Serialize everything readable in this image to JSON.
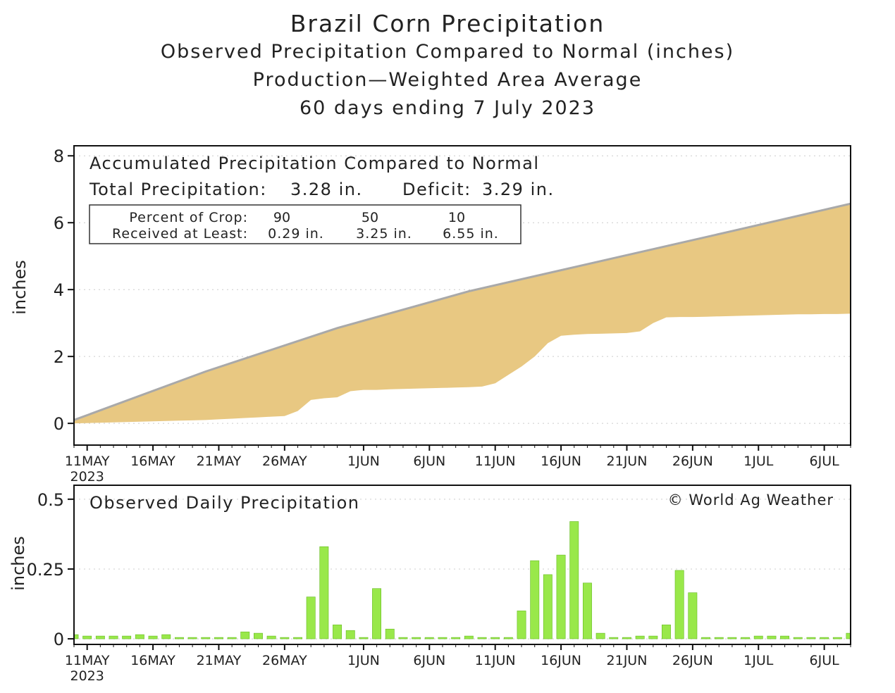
{
  "header": {
    "title": "Brazil Corn Precipitation",
    "subtitle1": "Observed Precipitation Compared to Normal (inches)",
    "subtitle2": "Production—Weighted Area Average",
    "subtitle3": "60 days ending 7 July 2023"
  },
  "colors": {
    "deficit_fill": "#e8c882",
    "normal_line": "#a9a9a9",
    "bar_fill": "#99e84a",
    "bar_stroke": "#66bb22"
  },
  "chart_data": [
    {
      "type": "area",
      "title": "Accumulated Precipitation Compared to Normal",
      "summary": {
        "total_label": "Total Precipitation:",
        "total_value": "3.28 in.",
        "deficit_label": "Deficit:",
        "deficit_value": "3.29 in."
      },
      "crop_table": {
        "row1_label": "Percent of Crop:",
        "row2_label": "Received at Least:",
        "percents": [
          "90",
          "50",
          "10"
        ],
        "amounts": [
          "0.29 in.",
          "3.25 in.",
          "6.55 in."
        ]
      },
      "ylabel": "inches",
      "ylim": [
        -0.65,
        8.3
      ],
      "yticks": [
        "0",
        "2",
        "4",
        "6",
        "8"
      ],
      "xlim": [
        0,
        59
      ],
      "xticks": [
        {
          "day": 1,
          "label": "11MAY"
        },
        {
          "day": 6,
          "label": "16MAY"
        },
        {
          "day": 11,
          "label": "21MAY"
        },
        {
          "day": 16,
          "label": "26MAY"
        },
        {
          "day": 22,
          "label": "1JUN"
        },
        {
          "day": 27,
          "label": "6JUN"
        },
        {
          "day": 32,
          "label": "11JUN"
        },
        {
          "day": 37,
          "label": "16JUN"
        },
        {
          "day": 42,
          "label": "21JUN"
        },
        {
          "day": 47,
          "label": "26JUN"
        },
        {
          "day": 52,
          "label": "1JUL"
        },
        {
          "day": 57,
          "label": "6JUL"
        }
      ],
      "year_label": "2023",
      "grid": true,
      "series": [
        {
          "name": "Normal",
          "points": [
            [
              0,
              0.1
            ],
            [
              10,
              1.55
            ],
            [
              20,
              2.85
            ],
            [
              30,
              3.95
            ],
            [
              40,
              4.85
            ],
            [
              50,
              5.75
            ],
            [
              59,
              6.57
            ]
          ]
        },
        {
          "name": "Observed",
          "points": [
            [
              0,
              0.0
            ],
            [
              1,
              0.01
            ],
            [
              2,
              0.02
            ],
            [
              3,
              0.03
            ],
            [
              4,
              0.04
            ],
            [
              5,
              0.05
            ],
            [
              6,
              0.06
            ],
            [
              7,
              0.07
            ],
            [
              8,
              0.08
            ],
            [
              9,
              0.09
            ],
            [
              10,
              0.1
            ],
            [
              11,
              0.12
            ],
            [
              12,
              0.14
            ],
            [
              13,
              0.16
            ],
            [
              14,
              0.18
            ],
            [
              15,
              0.2
            ],
            [
              16,
              0.22
            ],
            [
              17,
              0.37
            ],
            [
              18,
              0.7
            ],
            [
              19,
              0.75
            ],
            [
              20,
              0.78
            ],
            [
              21,
              0.96
            ],
            [
              22,
              1.0
            ],
            [
              23,
              1.0
            ],
            [
              24,
              1.02
            ],
            [
              25,
              1.03
            ],
            [
              26,
              1.04
            ],
            [
              27,
              1.05
            ],
            [
              28,
              1.06
            ],
            [
              29,
              1.07
            ],
            [
              30,
              1.08
            ],
            [
              31,
              1.1
            ],
            [
              32,
              1.2
            ],
            [
              33,
              1.45
            ],
            [
              34,
              1.7
            ],
            [
              35,
              2.0
            ],
            [
              36,
              2.4
            ],
            [
              37,
              2.62
            ],
            [
              38,
              2.65
            ],
            [
              39,
              2.67
            ],
            [
              40,
              2.68
            ],
            [
              41,
              2.69
            ],
            [
              42,
              2.7
            ],
            [
              43,
              2.75
            ],
            [
              44,
              3.0
            ],
            [
              45,
              3.17
            ],
            [
              46,
              3.18
            ],
            [
              47,
              3.18
            ],
            [
              48,
              3.19
            ],
            [
              49,
              3.2
            ],
            [
              50,
              3.21
            ],
            [
              51,
              3.22
            ],
            [
              52,
              3.23
            ],
            [
              53,
              3.24
            ],
            [
              54,
              3.25
            ],
            [
              55,
              3.26
            ],
            [
              56,
              3.26
            ],
            [
              57,
              3.27
            ],
            [
              58,
              3.27
            ],
            [
              59,
              3.28
            ]
          ]
        }
      ]
    },
    {
      "type": "bar",
      "title": "Observed Daily Precipitation",
      "credit": "© World Ag Weather",
      "ylabel": "inches",
      "ylim": [
        -0.02,
        0.55
      ],
      "yticks": [
        "0",
        "0.25",
        "0.5"
      ],
      "xlim": [
        0,
        59
      ],
      "year_label": "2023",
      "grid": true,
      "values": [
        0.015,
        0.01,
        0.01,
        0.01,
        0.01,
        0.015,
        0.01,
        0.015,
        0.005,
        0.005,
        0.005,
        0.005,
        0.005,
        0.025,
        0.02,
        0.01,
        0.005,
        0.005,
        0.15,
        0.33,
        0.05,
        0.03,
        0.005,
        0.18,
        0.035,
        0.005,
        0.005,
        0.005,
        0.005,
        0.005,
        0.01,
        0.005,
        0.005,
        0.005,
        0.1,
        0.28,
        0.23,
        0.3,
        0.42,
        0.2,
        0.02,
        0.005,
        0.005,
        0.01,
        0.01,
        0.05,
        0.245,
        0.165,
        0.005,
        0.005,
        0.005,
        0.005,
        0.01,
        0.01,
        0.01,
        0.005,
        0.005,
        0.005,
        0.005,
        0.02
      ]
    }
  ]
}
